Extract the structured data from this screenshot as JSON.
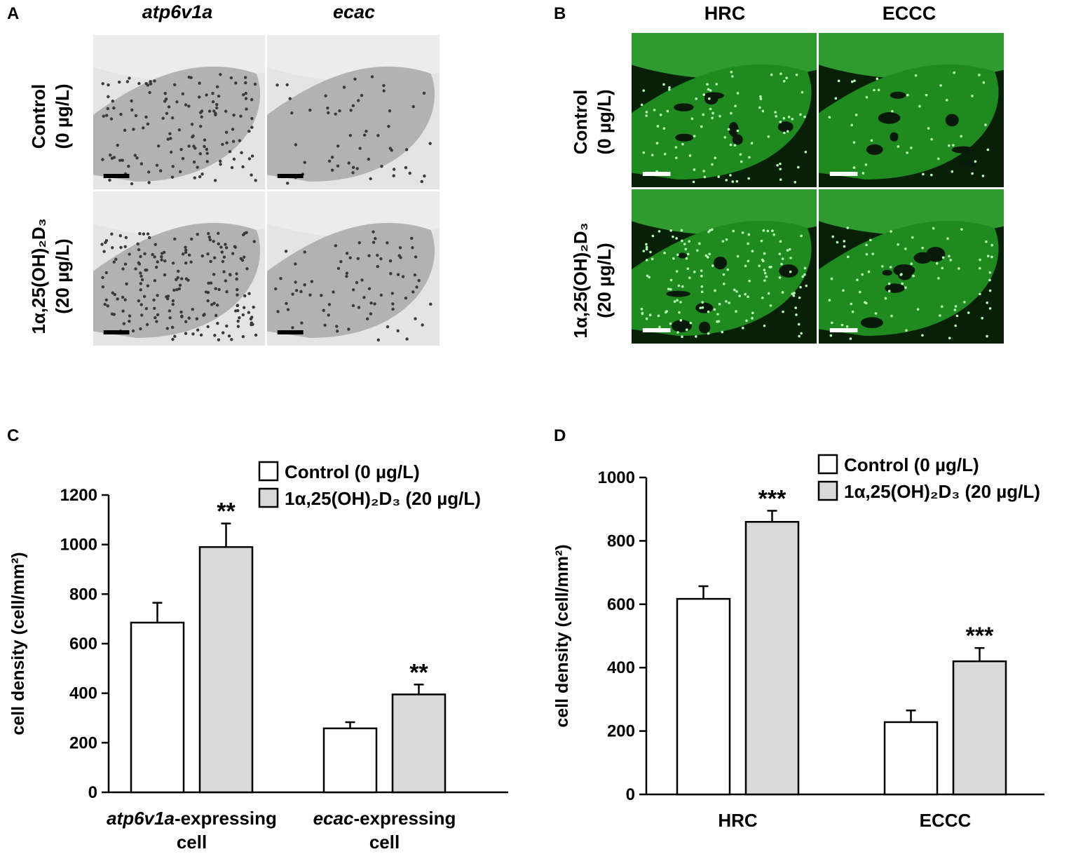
{
  "panels": {
    "A": {
      "letter": "A",
      "columns": [
        "atp6v1a",
        "ecac"
      ],
      "rows": [
        {
          "line1": "Control",
          "line2": "(0 µg/L)"
        },
        {
          "line1": "1α,25(OH)₂D₃",
          "line2": "(20 µg/L)"
        }
      ]
    },
    "B": {
      "letter": "B",
      "columns": [
        "HRC",
        "ECCC"
      ],
      "rows": [
        {
          "line1": "Control",
          "line2": "(0 µg/L)"
        },
        {
          "line1": "1α,25(OH)₂D₃",
          "line2": "(20 µg/L)"
        }
      ]
    },
    "C": {
      "letter": "C"
    },
    "D": {
      "letter": "D"
    }
  },
  "colors": {
    "control_fill": "#ffffff",
    "treated_fill": "#d9d9d9",
    "micro_bw_bg": "#e4e4e4",
    "micro_green": "#1f8a1f"
  },
  "chart_data": [
    {
      "id": "C",
      "type": "bar",
      "ylabel": "cell density (cell/mm²)",
      "ylim": [
        0,
        1200
      ],
      "yticks": [
        0,
        200,
        400,
        600,
        800,
        1000,
        1200
      ],
      "categories": [
        {
          "pre": "atp6v1a",
          "post": "-expressing",
          "line2": "cell"
        },
        {
          "pre": "ecac",
          "post": "-expressing",
          "line2": "cell"
        }
      ],
      "legend": [
        "Control (0 µg/L)",
        "1α,25(OH)₂D₃ (20 µg/L)"
      ],
      "legend_position": "top-right",
      "series": [
        {
          "name": "Control (0 µg/L)",
          "values": [
            685,
            258
          ],
          "errors": [
            80,
            25
          ],
          "marks": [
            "",
            ""
          ]
        },
        {
          "name": "1α,25(OH)₂D₃ (20 µg/L)",
          "values": [
            990,
            395
          ],
          "errors": [
            95,
            40
          ],
          "marks": [
            "**",
            "**"
          ]
        }
      ]
    },
    {
      "id": "D",
      "type": "bar",
      "ylabel": "cell density (cell/mm²)",
      "ylim": [
        0,
        1000
      ],
      "yticks": [
        0,
        200,
        400,
        600,
        800,
        1000
      ],
      "categories": [
        {
          "pre": "",
          "post": "HRC",
          "line2": ""
        },
        {
          "pre": "",
          "post": "ECCC",
          "line2": ""
        }
      ],
      "legend": [
        "Control (0 µg/L)",
        "1α,25(OH)₂D₃ (20 µg/L)"
      ],
      "legend_position": "top-right",
      "series": [
        {
          "name": "Control (0 µg/L)",
          "values": [
            617,
            228
          ],
          "errors": [
            40,
            37
          ],
          "marks": [
            "",
            ""
          ]
        },
        {
          "name": "1α,25(OH)₂D₃ (20 µg/L)",
          "values": [
            860,
            420
          ],
          "errors": [
            35,
            42
          ],
          "marks": [
            "***",
            "***"
          ]
        }
      ]
    }
  ]
}
